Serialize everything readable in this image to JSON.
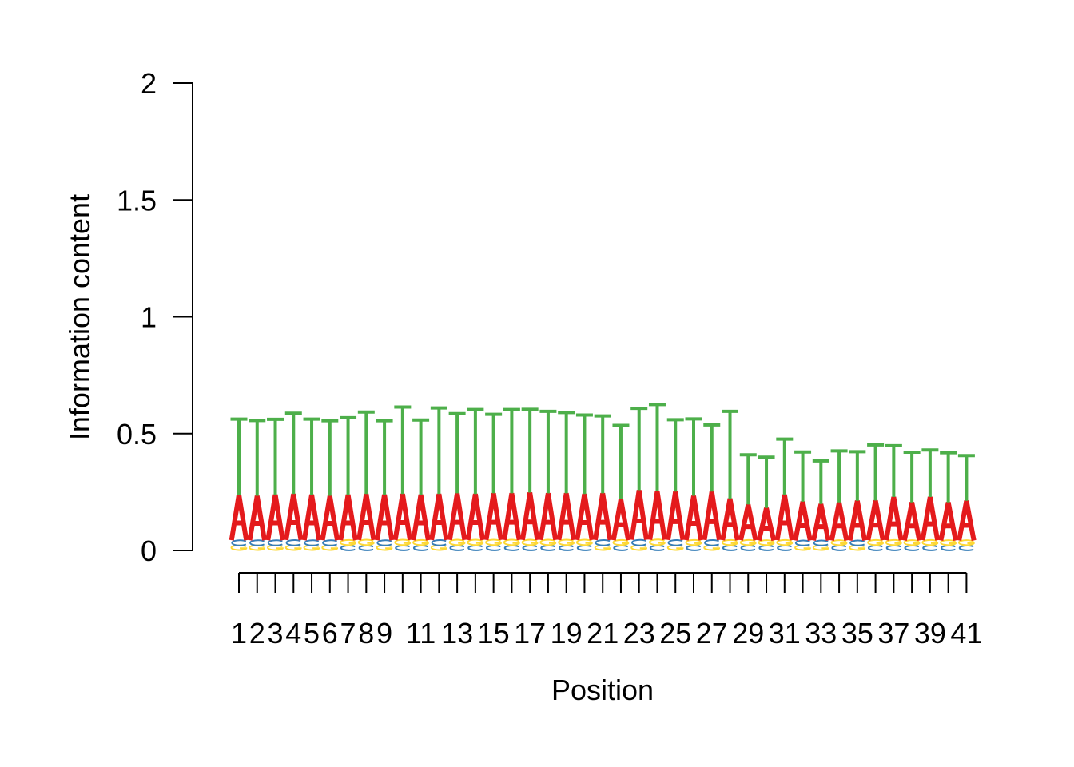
{
  "chart_data": {
    "type": "sequence-logo",
    "xlabel": "Position",
    "ylabel": "Information content",
    "ylim": [
      0,
      2
    ],
    "y_ticks": [
      "0",
      "0.5",
      "1",
      "1.5",
      "2"
    ],
    "x_tick_labels": [
      "1",
      "2",
      "3",
      "4",
      "5",
      "6",
      "7",
      "8",
      "9",
      "",
      "11",
      "",
      "13",
      "",
      "15",
      "",
      "17",
      "",
      "19",
      "",
      "21",
      "",
      "23",
      "",
      "25",
      "",
      "27",
      "",
      "29",
      "",
      "31",
      "",
      "33",
      "",
      "35",
      "",
      "37",
      "",
      "39",
      "",
      "41"
    ],
    "positions": [
      {
        "pos": 1,
        "G": 0.021,
        "C": 0.023,
        "A": 0.195,
        "T": 0.333
      },
      {
        "pos": 2,
        "G": 0.021,
        "C": 0.023,
        "A": 0.19,
        "T": 0.332
      },
      {
        "pos": 3,
        "G": 0.021,
        "C": 0.023,
        "A": 0.195,
        "T": 0.332
      },
      {
        "pos": 4,
        "G": 0.021,
        "C": 0.024,
        "A": 0.197,
        "T": 0.356
      },
      {
        "pos": 5,
        "G": 0.021,
        "C": 0.023,
        "A": 0.195,
        "T": 0.333
      },
      {
        "pos": 6,
        "G": 0.021,
        "C": 0.023,
        "A": 0.19,
        "T": 0.331
      },
      {
        "pos": 7,
        "C": 0.021,
        "G": 0.023,
        "A": 0.195,
        "T": 0.339
      },
      {
        "pos": 8,
        "C": 0.021,
        "G": 0.024,
        "A": 0.197,
        "T": 0.361
      },
      {
        "pos": 9,
        "G": 0.021,
        "C": 0.023,
        "A": 0.195,
        "T": 0.326
      },
      {
        "pos": 10,
        "C": 0.021,
        "G": 0.024,
        "A": 0.197,
        "T": 0.383
      },
      {
        "pos": 11,
        "C": 0.021,
        "G": 0.023,
        "A": 0.195,
        "T": 0.329
      },
      {
        "pos": 12,
        "G": 0.021,
        "C": 0.024,
        "A": 0.197,
        "T": 0.379
      },
      {
        "pos": 13,
        "C": 0.021,
        "G": 0.024,
        "A": 0.2,
        "T": 0.351
      },
      {
        "pos": 14,
        "C": 0.021,
        "G": 0.024,
        "A": 0.197,
        "T": 0.372
      },
      {
        "pos": 15,
        "C": 0.021,
        "G": 0.024,
        "A": 0.2,
        "T": 0.348
      },
      {
        "pos": 16,
        "C": 0.021,
        "G": 0.024,
        "A": 0.2,
        "T": 0.369
      },
      {
        "pos": 17,
        "C": 0.021,
        "G": 0.024,
        "A": 0.203,
        "T": 0.367
      },
      {
        "pos": 18,
        "C": 0.021,
        "G": 0.024,
        "A": 0.2,
        "T": 0.361
      },
      {
        "pos": 19,
        "C": 0.021,
        "G": 0.024,
        "A": 0.2,
        "T": 0.356
      },
      {
        "pos": 20,
        "C": 0.021,
        "G": 0.024,
        "A": 0.197,
        "T": 0.348
      },
      {
        "pos": 21,
        "G": 0.021,
        "C": 0.024,
        "A": 0.2,
        "T": 0.341
      },
      {
        "pos": 22,
        "C": 0.021,
        "G": 0.023,
        "A": 0.175,
        "T": 0.326
      },
      {
        "pos": 23,
        "G": 0.021,
        "C": 0.025,
        "A": 0.212,
        "T": 0.361
      },
      {
        "pos": 24,
        "C": 0.021,
        "G": 0.025,
        "A": 0.207,
        "T": 0.383
      },
      {
        "pos": 25,
        "G": 0.021,
        "C": 0.024,
        "A": 0.207,
        "T": 0.317
      },
      {
        "pos": 26,
        "C": 0.021,
        "G": 0.023,
        "A": 0.19,
        "T": 0.339
      },
      {
        "pos": 27,
        "G": 0.021,
        "C": 0.024,
        "A": 0.207,
        "T": 0.294
      },
      {
        "pos": 28,
        "C": 0.021,
        "G": 0.023,
        "A": 0.178,
        "T": 0.385
      },
      {
        "pos": 29,
        "C": 0.021,
        "G": 0.023,
        "A": 0.153,
        "T": 0.219
      },
      {
        "pos": 30,
        "C": 0.021,
        "G": 0.022,
        "A": 0.139,
        "T": 0.224
      },
      {
        "pos": 31,
        "C": 0.021,
        "G": 0.023,
        "A": 0.195,
        "T": 0.245
      },
      {
        "pos": 32,
        "G": 0.021,
        "C": 0.022,
        "A": 0.166,
        "T": 0.219
      },
      {
        "pos": 33,
        "G": 0.021,
        "C": 0.022,
        "A": 0.156,
        "T": 0.19
      },
      {
        "pos": 34,
        "C": 0.021,
        "G": 0.022,
        "A": 0.163,
        "T": 0.227
      },
      {
        "pos": 35,
        "G": 0.021,
        "C": 0.022,
        "A": 0.17,
        "T": 0.216
      },
      {
        "pos": 36,
        "C": 0.021,
        "G": 0.023,
        "A": 0.17,
        "T": 0.245
      },
      {
        "pos": 37,
        "C": 0.021,
        "G": 0.023,
        "A": 0.185,
        "T": 0.226
      },
      {
        "pos": 38,
        "C": 0.021,
        "G": 0.022,
        "A": 0.163,
        "T": 0.221
      },
      {
        "pos": 39,
        "C": 0.021,
        "G": 0.023,
        "A": 0.185,
        "T": 0.207
      },
      {
        "pos": 40,
        "C": 0.021,
        "G": 0.022,
        "A": 0.163,
        "T": 0.219
      },
      {
        "pos": 41,
        "C": 0.021,
        "G": 0.022,
        "A": 0.17,
        "T": 0.199
      }
    ],
    "colors": {
      "A": "#e41a1c",
      "T": "#4daf4a",
      "C": "#377eb8",
      "G": "#fdd835"
    }
  }
}
